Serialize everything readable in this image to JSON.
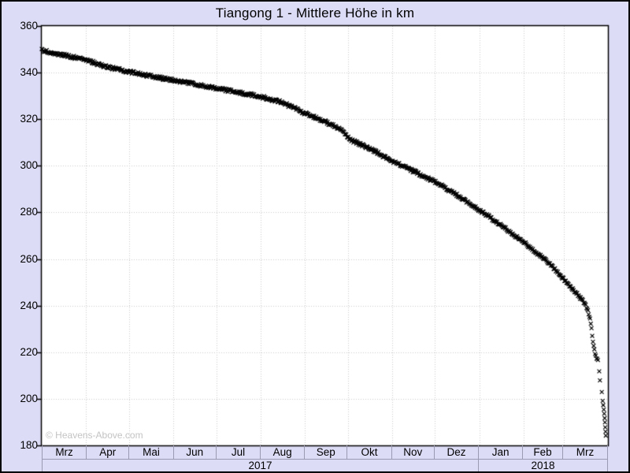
{
  "watermark": "© Heavens-Above.com",
  "chart_data": {
    "type": "scatter",
    "title": "Tiangong 1 - Mittlere Höhe in km",
    "marker": "x",
    "marker_color": "#000000",
    "background_color": "#dcdcf6",
    "plot_background": "#ffffff",
    "gridline_color": "#cccccc",
    "grid": "dotted",
    "ylim": [
      180,
      360
    ],
    "y_tick_step": 20,
    "y_ticks": [
      "360",
      "340",
      "320",
      "300",
      "280",
      "260",
      "240",
      "220",
      "200",
      "180"
    ],
    "x_months": [
      "Mrz",
      "Apr",
      "Mai",
      "Jun",
      "Jul",
      "Aug",
      "Sep",
      "Okt",
      "Nov",
      "Dez",
      "Jan",
      "Feb",
      "Mrz"
    ],
    "x_years": [
      "2017",
      "2018"
    ],
    "x_total_days": 396,
    "month_boundaries_days": [
      0,
      31,
      61,
      92,
      122,
      153,
      184,
      214,
      245,
      275,
      306,
      337,
      365,
      396
    ],
    "anchors_day_alt": [
      [
        0,
        349.6
      ],
      [
        10,
        348.2
      ],
      [
        20,
        346.9
      ],
      [
        31,
        345.5
      ],
      [
        45,
        342.6
      ],
      [
        61,
        340.3
      ],
      [
        75,
        338.6
      ],
      [
        92,
        336.8
      ],
      [
        107,
        335.1
      ],
      [
        122,
        333.3
      ],
      [
        137,
        331.6
      ],
      [
        153,
        329.7
      ],
      [
        168,
        327.2
      ],
      [
        184,
        322.6
      ],
      [
        199,
        318.7
      ],
      [
        208,
        316.2
      ],
      [
        217,
        310.8
      ],
      [
        230,
        307.3
      ],
      [
        245,
        302.0
      ],
      [
        260,
        297.7
      ],
      [
        275,
        293.2
      ],
      [
        290,
        287.6
      ],
      [
        306,
        281.0
      ],
      [
        321,
        274.6
      ],
      [
        337,
        267.2
      ],
      [
        351,
        260.3
      ],
      [
        358,
        256.2
      ],
      [
        365,
        251.5
      ],
      [
        370,
        248.0
      ],
      [
        375,
        244.6
      ],
      [
        378,
        242.4
      ],
      [
        381,
        239.6
      ],
      [
        383,
        235.5
      ],
      [
        384.5,
        230.5
      ],
      [
        385.4,
        224.5
      ],
      [
        386.5,
        221.5
      ],
      [
        387.3,
        218.5
      ],
      [
        389,
        216.3
      ]
    ],
    "tail_points_day_alt": [
      [
        389.9,
        211.8
      ],
      [
        390.4,
        207.9
      ],
      [
        391.7,
        202.9
      ],
      [
        392.3,
        199.1
      ],
      [
        392.7,
        197.3
      ],
      [
        393.1,
        195.4
      ],
      [
        393.4,
        193.6
      ],
      [
        393.7,
        191.7
      ],
      [
        393.9,
        189.9
      ],
      [
        394.1,
        187.8
      ],
      [
        394.3,
        185.9
      ],
      [
        394.5,
        184.2
      ]
    ]
  }
}
